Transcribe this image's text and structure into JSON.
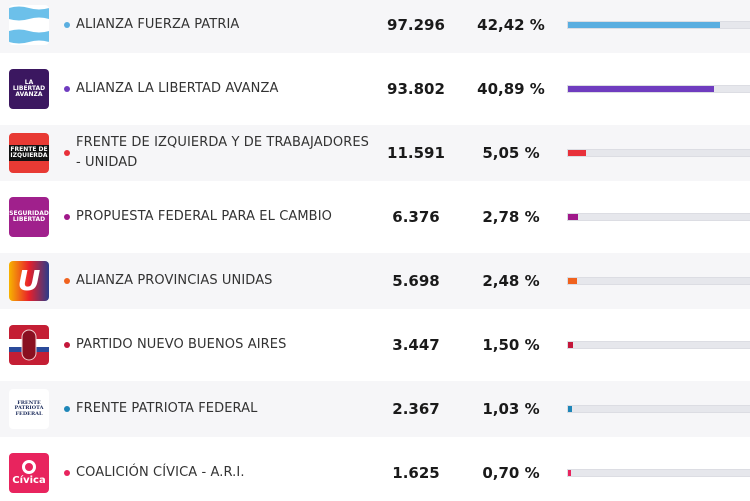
{
  "parties": [
    {
      "name": "ALIANZA FUERZA PATRIA",
      "votes": "97.296",
      "percent_label": "42,42 %",
      "percent": 42.42,
      "color": "#5aaee0",
      "logo": "argentina-flag",
      "logo_bg": "#ffffff",
      "logo_text": ""
    },
    {
      "name": "ALIANZA LA LIBERTAD AVANZA",
      "votes": "93.802",
      "percent_label": "40,89 %",
      "percent": 40.89,
      "color": "#6f3cbf",
      "logo": "la-libertad-avanza-logo",
      "logo_bg": "#3b1760",
      "logo_text": "LA LIBERTAD AVANZA"
    },
    {
      "name": "FRENTE DE IZQUIERDA Y DE TRABAJADORES - UNIDAD",
      "votes": "11.591",
      "percent_label": "5,05 %",
      "percent": 5.05,
      "color": "#e8303a",
      "logo": "frente-de-izquierda-logo",
      "logo_bg": "#e83a34",
      "logo_text": "FRENTE DE IZQUIERDA"
    },
    {
      "name": "PROPUESTA FEDERAL PARA EL CAMBIO",
      "votes": "6.376",
      "percent_label": "2,78 %",
      "percent": 2.78,
      "color": "#a0188a",
      "logo": "seguridad-libertad-logo",
      "logo_bg": "#a0208c",
      "logo_text": "SEGURIDAD LIBERTAD"
    },
    {
      "name": "ALIANZA PROVINCIAS UNIDAS",
      "votes": "5.698",
      "percent_label": "2,48 %",
      "percent": 2.48,
      "color": "#f0621e",
      "logo": "provincias-unidas-logo",
      "logo_bg": "#f07a10",
      "logo_text": "U"
    },
    {
      "name": "PARTIDO NUEVO BUENOS AIRES",
      "votes": "3.447",
      "percent_label": "1,50 %",
      "percent": 1.5,
      "color": "#c4173a",
      "logo": "partido-nuevo-buenos-aires-logo",
      "logo_bg": "#c41e34",
      "logo_text": ""
    },
    {
      "name": "FRENTE PATRIOTA FEDERAL",
      "votes": "2.367",
      "percent_label": "1,03 %",
      "percent": 1.03,
      "color": "#1e86b8",
      "logo": "frente-patriota-federal-logo",
      "logo_bg": "#ffffff",
      "logo_text": "FRENTE PATRIOTA FEDERAL"
    },
    {
      "name": "COALICIÓN CÍVICA - A.R.I.",
      "votes": "1.625",
      "percent_label": "0,70 %",
      "percent": 0.7,
      "color": "#e8245e",
      "logo": "coalicion-civica-logo",
      "logo_bg": "#e8245e",
      "logo_text": "Cívica"
    }
  ]
}
